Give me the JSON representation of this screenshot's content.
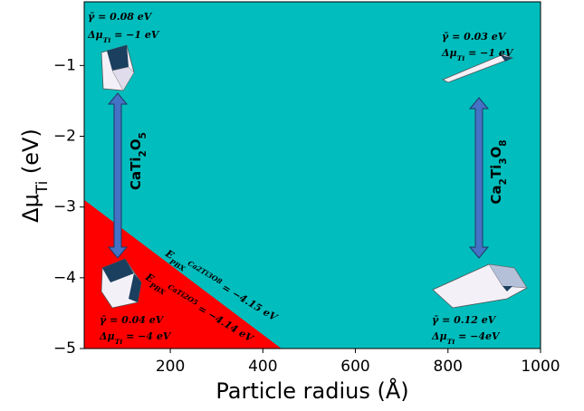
{
  "chart_data": {
    "type": "phase",
    "x_label": "Particle radius (Å)",
    "y_label": [
      {
        "text": "Δμ"
      },
      {
        "text": "Ti",
        "style": "sub"
      },
      {
        "text": " (eV)"
      }
    ],
    "xlim": [
      14,
      1000
    ],
    "ylim": [
      -5,
      -0.1
    ],
    "xticks": [
      200,
      400,
      600,
      800,
      1000
    ],
    "yticks": [
      {
        "value": -1,
        "label": "−1"
      },
      {
        "value": -2,
        "label": "−2"
      },
      {
        "value": -3,
        "label": "−3"
      },
      {
        "value": -4,
        "label": "−4"
      },
      {
        "value": -5,
        "label": "−5"
      }
    ],
    "background_color": "#02bdbd",
    "boundary": {
      "x": [
        14,
        440
      ],
      "y": [
        -2.9,
        -5
      ],
      "color": "#ff0000"
    },
    "annotations": [
      {
        "parts": [
          {
            "text": "γ̄ = 0.08 eV"
          }
        ]
      },
      {
        "parts": [
          {
            "text": "Δμ"
          },
          {
            "text": "Ti",
            "style": "sub"
          },
          {
            "text": " = −1 eV"
          }
        ]
      },
      {
        "parts": [
          {
            "text": "γ̄ = 0.03 eV"
          }
        ]
      },
      {
        "parts": [
          {
            "text": "Δμ"
          },
          {
            "text": "Ti",
            "style": "sub"
          },
          {
            "text": " = −1 eV"
          }
        ]
      },
      {
        "parts": [
          {
            "text": "γ̄ = 0.04 eV"
          }
        ]
      },
      {
        "parts": [
          {
            "text": "Δμ"
          },
          {
            "text": "Ti",
            "style": "sub"
          },
          {
            "text": " = −4 eV"
          }
        ]
      },
      {
        "parts": [
          {
            "text": "γ̄ = 0.12 eV"
          }
        ]
      },
      {
        "parts": [
          {
            "text": "Δμ"
          },
          {
            "text": "Ti",
            "style": "sub"
          },
          {
            "text": " = −4eV"
          }
        ]
      },
      {
        "parts": [
          {
            "text": "CaTi"
          },
          {
            "text": "2",
            "style": "sub"
          },
          {
            "text": "O"
          },
          {
            "text": "5",
            "style": "sub"
          }
        ]
      },
      {
        "parts": [
          {
            "text": "Ca"
          },
          {
            "text": "2",
            "style": "sub"
          },
          {
            "text": "Ti"
          },
          {
            "text": "3",
            "style": "sub"
          },
          {
            "text": "O"
          },
          {
            "text": "8",
            "style": "sub"
          }
        ]
      },
      {
        "parts": [
          {
            "text": "E"
          },
          {
            "text": "PBX",
            "style": "sub"
          },
          {
            "text": "Ca2Ti3O8",
            "style": "sup"
          },
          {
            "text": " = −4.15 eV"
          }
        ]
      },
      {
        "parts": [
          {
            "text": "E"
          },
          {
            "text": "PBX",
            "style": "sub"
          },
          {
            "text": "CaTi2O5",
            "style": "sup"
          },
          {
            "text": " = −4.14 eV"
          }
        ]
      }
    ]
  }
}
